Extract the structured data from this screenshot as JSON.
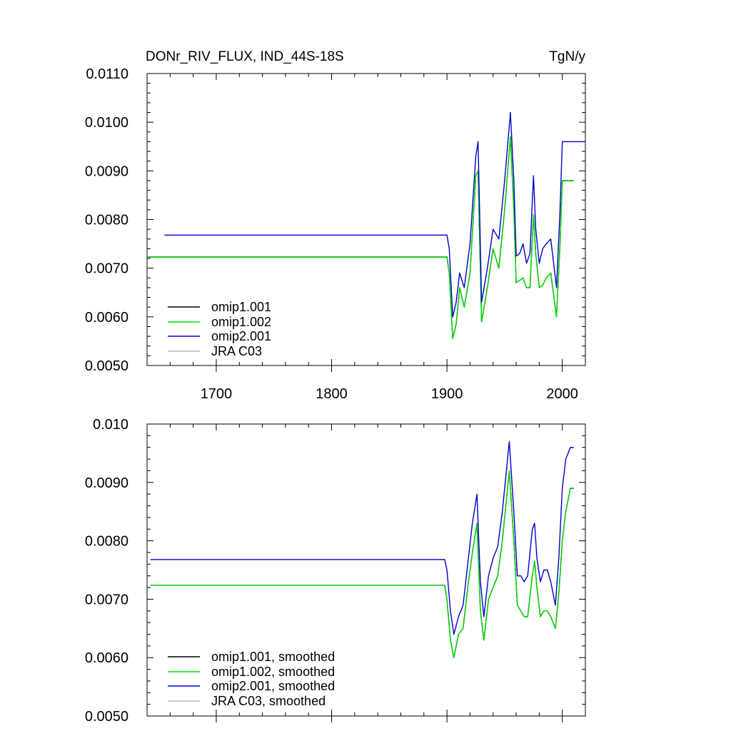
{
  "header": {
    "title": "DONr_RIV_FLUX, IND_44S-18S",
    "units": "TgN/y"
  },
  "legend_top": [
    "omip1.001",
    "omip1.002",
    "omip2.001",
    "JRA C03"
  ],
  "legend_bottom": [
    "omip1.001, smoothed",
    "omip1.002, smoothed",
    "omip2.001, smoothed",
    "JRA C03, smoothed"
  ],
  "colors": {
    "omip1_001": "#000000",
    "omip1_002": "#00dd00",
    "omip2_001": "#0000cc",
    "jra_c03": "#bbbbbb",
    "axes": "#000000"
  },
  "chart_data": [
    {
      "type": "line",
      "title": "DONr_RIV_FLUX, IND_44S-18S",
      "units": "TgN/y",
      "xlim": [
        1640,
        2020
      ],
      "ylim": [
        0.005,
        0.011
      ],
      "x_ticks": [
        1700,
        1800,
        1900,
        2000
      ],
      "x_tick_labels": [
        "1700",
        "1800",
        "1900",
        "2000"
      ],
      "y_ticks": [
        0.005,
        0.006,
        0.007,
        0.008,
        0.009,
        0.01,
        0.011
      ],
      "y_tick_labels": [
        "0.0050",
        "0.0060",
        "0.0070",
        "0.0080",
        "0.0090",
        "0.0100",
        "0.0110"
      ],
      "legend_position": "bottom-left",
      "grid": false,
      "series": [
        {
          "name": "omip1.001",
          "key": "omip1_001",
          "x": [
            1640,
            1900,
            1902,
            1905,
            1908,
            1911,
            1915,
            1920,
            1925,
            1927,
            1930,
            1935,
            1940,
            1945,
            1950,
            1955,
            1958,
            1960,
            1963,
            1966,
            1969,
            1972,
            1975,
            1977,
            1980,
            1983,
            1986,
            1990,
            1995,
            1998,
            2000,
            2010
          ],
          "y": [
            0.00723,
            0.00723,
            0.0069,
            0.00555,
            0.00585,
            0.0066,
            0.0062,
            0.0069,
            0.0089,
            0.009,
            0.0059,
            0.0066,
            0.0074,
            0.007,
            0.0082,
            0.0097,
            0.0082,
            0.0067,
            0.00675,
            0.0068,
            0.0066,
            0.0066,
            0.0081,
            0.0073,
            0.0066,
            0.00665,
            0.0068,
            0.0069,
            0.006,
            0.0075,
            0.0088,
            0.0088
          ]
        },
        {
          "name": "omip1.002",
          "key": "omip1_002",
          "x": [
            1640,
            1900,
            1902,
            1905,
            1908,
            1911,
            1915,
            1920,
            1925,
            1927,
            1930,
            1935,
            1940,
            1945,
            1950,
            1955,
            1958,
            1960,
            1963,
            1966,
            1969,
            1972,
            1975,
            1977,
            1980,
            1983,
            1986,
            1990,
            1995,
            1998,
            2000,
            2010
          ],
          "y": [
            0.00723,
            0.00723,
            0.0069,
            0.00555,
            0.00585,
            0.0066,
            0.0062,
            0.0069,
            0.0089,
            0.009,
            0.0059,
            0.0066,
            0.0074,
            0.007,
            0.0082,
            0.0097,
            0.0082,
            0.0067,
            0.00675,
            0.0068,
            0.0066,
            0.0066,
            0.0081,
            0.0073,
            0.0066,
            0.00665,
            0.0068,
            0.0069,
            0.006,
            0.0075,
            0.0088,
            0.0088
          ]
        },
        {
          "name": "omip2.001",
          "key": "omip2_001",
          "x": [
            1655,
            1900,
            1902,
            1905,
            1908,
            1911,
            1915,
            1920,
            1925,
            1927,
            1930,
            1935,
            1940,
            1945,
            1950,
            1955,
            1958,
            1960,
            1963,
            1966,
            1969,
            1972,
            1975,
            1977,
            1980,
            1983,
            1986,
            1990,
            1995,
            1998,
            2000,
            2020
          ],
          "y": [
            0.00768,
            0.00768,
            0.0074,
            0.006,
            0.0063,
            0.0069,
            0.0066,
            0.0075,
            0.0093,
            0.0096,
            0.0063,
            0.007,
            0.0078,
            0.0076,
            0.0088,
            0.0102,
            0.0088,
            0.00725,
            0.0073,
            0.0075,
            0.0071,
            0.0073,
            0.0089,
            0.0078,
            0.0071,
            0.0074,
            0.0075,
            0.0076,
            0.0066,
            0.0082,
            0.0096,
            0.0096
          ]
        }
      ]
    },
    {
      "type": "line",
      "xlim": [
        1640,
        2020
      ],
      "ylim": [
        0.005,
        0.01
      ],
      "x_ticks": [
        1700,
        1800,
        1900,
        2000
      ],
      "y_ticks": [
        0.005,
        0.006,
        0.007,
        0.008,
        0.009,
        0.01
      ],
      "y_tick_labels": [
        "0.0050",
        "0.0060",
        "0.0070",
        "0.0080",
        "0.0090",
        "0.010"
      ],
      "legend_position": "bottom-left",
      "grid": false,
      "series": [
        {
          "name": "omip1.001, smoothed",
          "key": "omip1_001",
          "x": [
            1643,
            1898,
            1900,
            1903,
            1906,
            1910,
            1914,
            1918,
            1922,
            1926,
            1929,
            1932,
            1936,
            1940,
            1944,
            1948,
            1954,
            1958,
            1961,
            1964,
            1967,
            1970,
            1974,
            1976,
            1978,
            1981,
            1984,
            1987,
            1990,
            1994,
            1997,
            2000,
            2003,
            2007,
            2010
          ],
          "y": [
            0.00724,
            0.00724,
            0.007,
            0.0063,
            0.006,
            0.0064,
            0.0065,
            0.0072,
            0.0078,
            0.0083,
            0.0068,
            0.0063,
            0.007,
            0.0072,
            0.0074,
            0.008,
            0.0092,
            0.008,
            0.0069,
            0.0068,
            0.0067,
            0.0067,
            0.0074,
            0.00765,
            0.0072,
            0.0067,
            0.0068,
            0.0068,
            0.0067,
            0.0065,
            0.0071,
            0.008,
            0.0085,
            0.0089,
            0.0089
          ]
        },
        {
          "name": "omip1.002, smoothed",
          "key": "omip1_002",
          "x": [
            1643,
            1898,
            1900,
            1903,
            1906,
            1910,
            1914,
            1918,
            1922,
            1926,
            1929,
            1932,
            1936,
            1940,
            1944,
            1948,
            1954,
            1958,
            1961,
            1964,
            1967,
            1970,
            1974,
            1976,
            1978,
            1981,
            1984,
            1987,
            1990,
            1994,
            1997,
            2000,
            2003,
            2007,
            2010
          ],
          "y": [
            0.00724,
            0.00724,
            0.007,
            0.0063,
            0.006,
            0.0064,
            0.0065,
            0.0072,
            0.0078,
            0.0083,
            0.0068,
            0.0063,
            0.007,
            0.0072,
            0.0074,
            0.008,
            0.0092,
            0.008,
            0.0069,
            0.0068,
            0.0067,
            0.0067,
            0.0074,
            0.00765,
            0.0072,
            0.0067,
            0.0068,
            0.0068,
            0.0067,
            0.0065,
            0.0071,
            0.008,
            0.0085,
            0.0089,
            0.0089
          ]
        },
        {
          "name": "omip2.001, smoothed",
          "key": "omip2_001",
          "x": [
            1643,
            1898,
            1900,
            1903,
            1906,
            1910,
            1914,
            1918,
            1922,
            1926,
            1929,
            1932,
            1936,
            1940,
            1944,
            1948,
            1954,
            1958,
            1961,
            1964,
            1967,
            1970,
            1974,
            1976,
            1978,
            1981,
            1984,
            1987,
            1990,
            1994,
            1997,
            2000,
            2003,
            2007,
            2010
          ],
          "y": [
            0.00768,
            0.00768,
            0.0075,
            0.0068,
            0.0064,
            0.0067,
            0.0069,
            0.0076,
            0.0083,
            0.0088,
            0.0073,
            0.0067,
            0.0074,
            0.0077,
            0.0079,
            0.0085,
            0.0097,
            0.0085,
            0.0074,
            0.0074,
            0.0073,
            0.0074,
            0.0082,
            0.0083,
            0.0077,
            0.0073,
            0.0075,
            0.0075,
            0.0073,
            0.0069,
            0.0077,
            0.0089,
            0.0094,
            0.0096,
            0.0096
          ]
        }
      ]
    }
  ]
}
